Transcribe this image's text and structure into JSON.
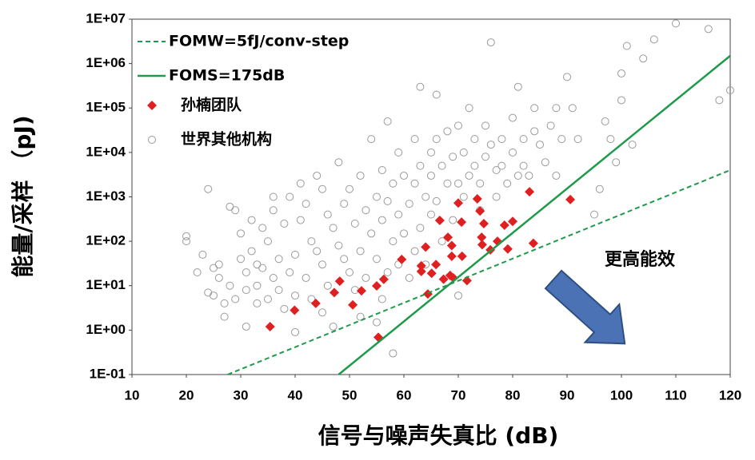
{
  "chart_data": {
    "type": "scatter",
    "x_label": "信号与噪声失真比 (dB)",
    "y_label": "能量/采样 （pJ)",
    "annotation": "更高能效",
    "xlim": [
      10,
      120
    ],
    "xticks": [
      10,
      20,
      30,
      40,
      50,
      60,
      70,
      80,
      90,
      100,
      110,
      120
    ],
    "ylim": [
      0.1,
      10000000
    ],
    "yscale": "log",
    "yticks": [
      {
        "value": 0.1,
        "label": "1E-01"
      },
      {
        "value": 1,
        "label": "1E+00"
      },
      {
        "value": 10,
        "label": "1E+01"
      },
      {
        "value": 100,
        "label": "1E+02"
      },
      {
        "value": 1000,
        "label": "1E+03"
      },
      {
        "value": 10000,
        "label": "1E+04"
      },
      {
        "value": 100000,
        "label": "1E+05"
      },
      {
        "value": 1000000,
        "label": "1E+06"
      },
      {
        "value": 10000000,
        "label": "1E+07"
      }
    ],
    "grid": false,
    "legend": "upper left",
    "series": [
      {
        "name": "FOMW=5fJ/conv-step",
        "style": "dashed-line",
        "color": "#1f9a4a",
        "x": [
          27.6,
          120
        ],
        "values": [
          0.1,
          4000
        ]
      },
      {
        "name": "FOMS=175dB",
        "style": "line",
        "color": "#1f9a4a",
        "x": [
          48,
          120
        ],
        "values": [
          0.1,
          1500000
        ]
      },
      {
        "name": "孙楠团队",
        "style": "diamond",
        "color": "#e02020",
        "x": [
          35.4,
          39.9,
          43.8,
          47.2,
          48.2,
          50.6,
          52.2,
          55,
          56.3,
          55.3,
          59.6,
          63.2,
          63.2,
          64.4,
          64,
          65.1,
          65.9,
          66.6,
          67.3,
          68.1,
          68.8,
          68.8,
          68.5,
          69.1,
          70,
          70.6,
          70.7,
          71.6,
          73.5,
          74,
          74.3,
          74.7,
          74.4,
          75.9,
          77.2,
          78.5,
          79.1,
          80,
          83.1,
          83.8,
          90.6
        ],
        "values": [
          1.2,
          2.8,
          4,
          7,
          12.6,
          3.7,
          7.7,
          9.9,
          13.9,
          0.69,
          39,
          21,
          28,
          6.5,
          74,
          19,
          30,
          295,
          14,
          123,
          80,
          46,
          17,
          15,
          724,
          270,
          46,
          13,
          900,
          480,
          123,
          250,
          84,
          64,
          100,
          230,
          67,
          280,
          1300,
          90,
          870
        ]
      },
      {
        "name": "世界其他机构",
        "style": "circle",
        "color": "#9a9a9a",
        "x": [
          20,
          20,
          22,
          23,
          24,
          24,
          25,
          25,
          26,
          26,
          27,
          27,
          28,
          28,
          29,
          29,
          30,
          30,
          31,
          31,
          31,
          32,
          32,
          33,
          33,
          33,
          34,
          34,
          35,
          35,
          36,
          36,
          36,
          37,
          37,
          38,
          38,
          39,
          39,
          40,
          40,
          40,
          41,
          41,
          42,
          42,
          43,
          43,
          44,
          44,
          45,
          45,
          45,
          46,
          46,
          47,
          47,
          48,
          48,
          49,
          49,
          50,
          50,
          51,
          51,
          52,
          52,
          52,
          53,
          53,
          54,
          54,
          55,
          55,
          55,
          56,
          56,
          56,
          57,
          57,
          57,
          58,
          58,
          58,
          59,
          59,
          59,
          60,
          60,
          61,
          61,
          62,
          62,
          62,
          63,
          63,
          63,
          64,
          64,
          65,
          65,
          65,
          66,
          66,
          66,
          67,
          67,
          68,
          68,
          69,
          69,
          70,
          70,
          70,
          71,
          71,
          72,
          72,
          73,
          73,
          74,
          74,
          75,
          75,
          76,
          76,
          77,
          77,
          78,
          78,
          79,
          80,
          80,
          81,
          81,
          82,
          82,
          83,
          84,
          84,
          85,
          86,
          87,
          88,
          88,
          89,
          90,
          91,
          92,
          95,
          96,
          97,
          98,
          99,
          100,
          100,
          101,
          102,
          104,
          106,
          110,
          116,
          118,
          120
        ],
        "values": [
          130,
          100,
          20,
          50,
          1500,
          7,
          6,
          25,
          30,
          15,
          4,
          2,
          600,
          10,
          500,
          5,
          150,
          40,
          20,
          8,
          1.2,
          300,
          60,
          10,
          4,
          30,
          200,
          25,
          5,
          100,
          1000,
          500,
          15,
          40,
          8,
          250,
          3,
          1000,
          20,
          50,
          6,
          0.9,
          300,
          2000,
          700,
          15,
          5,
          100,
          3000,
          60,
          1500,
          30,
          2.5,
          400,
          10,
          200,
          1.2,
          6000,
          80,
          40,
          700,
          1500,
          20,
          250,
          8,
          3000,
          60,
          2,
          500,
          15,
          20000,
          150,
          1000,
          40,
          1.5,
          4000,
          300,
          5,
          50000,
          800,
          20,
          2000,
          100,
          0.3,
          10000,
          400,
          30,
          3000,
          150,
          700,
          15,
          20000,
          2000,
          60,
          300000,
          5000,
          200,
          1000,
          30,
          10000,
          3000,
          400,
          200000,
          20000,
          800,
          5000,
          100,
          2000,
          30000,
          8000,
          300,
          40000,
          2000,
          6,
          10000,
          1000,
          3000,
          100000,
          20000,
          5000,
          2000,
          500,
          40000,
          8000,
          3000000,
          15000,
          4000,
          1000,
          20000,
          5000,
          2000,
          60000,
          10000,
          300000,
          3000,
          20000,
          5000,
          3000,
          100000,
          30000,
          15000,
          6000,
          40000,
          3000,
          100000,
          20000,
          500000,
          100000,
          20000,
          400,
          1500,
          50000,
          20000,
          6000,
          150000,
          600000,
          2500000,
          15000,
          1300000,
          3500000,
          8000000,
          6000000,
          150000,
          250000
        ]
      }
    ]
  }
}
